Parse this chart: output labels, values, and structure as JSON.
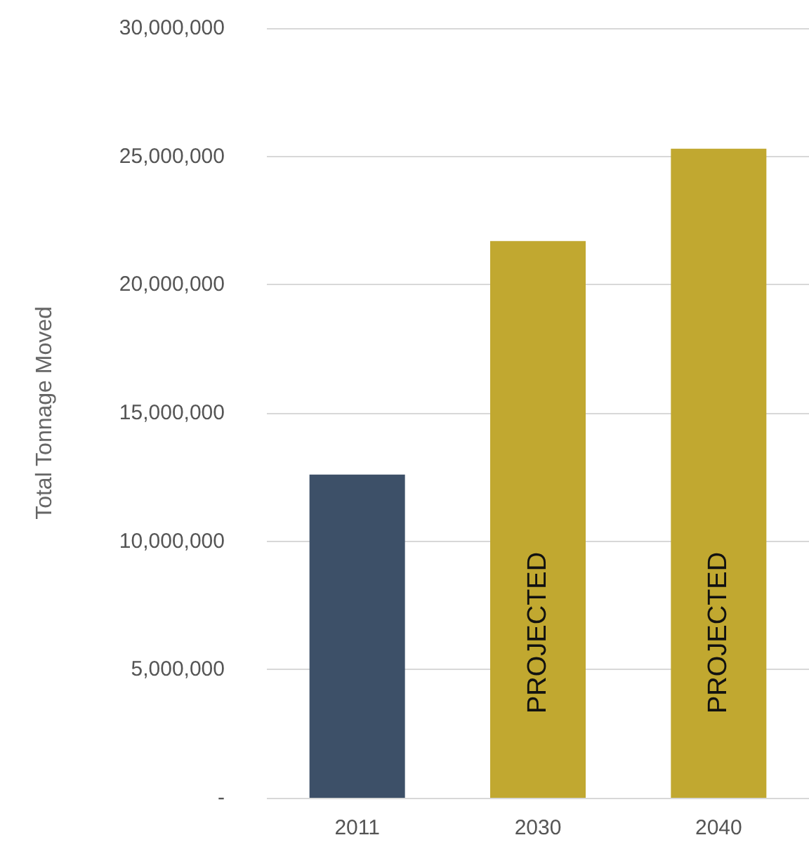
{
  "chart_data": {
    "type": "bar",
    "ylabel": "Total Tonnage Moved",
    "categories": [
      "2011",
      "2030",
      "2040"
    ],
    "values": [
      12600000,
      21700000,
      25300000
    ],
    "colors": [
      "#3d5068",
      "#c1a830",
      "#c1a830"
    ],
    "ylim": [
      0,
      30000000
    ],
    "yticks": [
      {
        "value": 0,
        "label": "-"
      },
      {
        "value": 5000000,
        "label": "5,000,000"
      },
      {
        "value": 10000000,
        "label": "10,000,000"
      },
      {
        "value": 15000000,
        "label": "15,000,000"
      },
      {
        "value": 20000000,
        "label": "20,000,000"
      },
      {
        "value": 25000000,
        "label": "25,000,000"
      },
      {
        "value": 30000000,
        "label": "30,000,000"
      }
    ],
    "grid": "y",
    "annotations": [
      "PROJECTED",
      "PROJECTED"
    ]
  }
}
